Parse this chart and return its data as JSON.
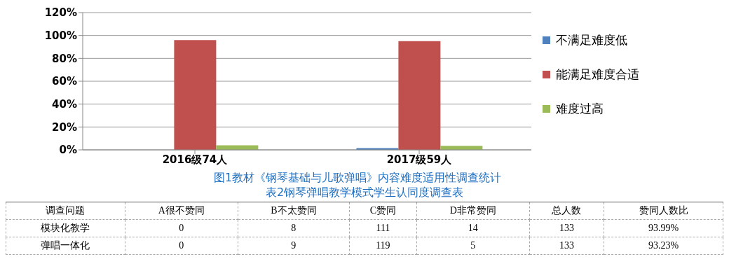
{
  "chart_data": [
    {
      "type": "bar",
      "title": "图1教材《钢琴基础与儿歌弹唱》内容难度适用性调查统计",
      "categories": [
        "2016级74人",
        "2017级59人"
      ],
      "series": [
        {
          "name": "不满足难度低",
          "color": "#4f81bd",
          "values": [
            0,
            1.5
          ]
        },
        {
          "name": "能满足难度合适",
          "color": "#c0504d",
          "values": [
            96,
            95
          ]
        },
        {
          "name": "难度过高",
          "color": "#9bbb59",
          "values": [
            4,
            3.5
          ]
        }
      ],
      "ylim": [
        0,
        120
      ],
      "yticks": [
        {
          "value": 0,
          "label": "0%"
        },
        {
          "value": 20,
          "label": "20%"
        },
        {
          "value": 40,
          "label": "40%"
        },
        {
          "value": 60,
          "label": "60%"
        },
        {
          "value": 80,
          "label": "80%"
        },
        {
          "value": 100,
          "label": "100%"
        },
        {
          "value": 120,
          "label": "120%"
        }
      ],
      "grid": "y",
      "legend": "right"
    },
    {
      "type": "other",
      "title": "表2钢琴弹唱教学模式学生认同度调查表",
      "ylabel": "调查问题",
      "categories": [
        "A很不赞同",
        "B不太赞同",
        "C赞同",
        "D非常赞同",
        "总人数",
        "赞同人数比"
      ],
      "y_categories": [
        "模块化教学",
        "弹唱一体化"
      ],
      "cell_labels": [
        [
          "0",
          "8",
          "111",
          "14",
          "133",
          "93.99%"
        ],
        [
          "0",
          "9",
          "119",
          "5",
          "133",
          "93.23%"
        ]
      ]
    }
  ]
}
